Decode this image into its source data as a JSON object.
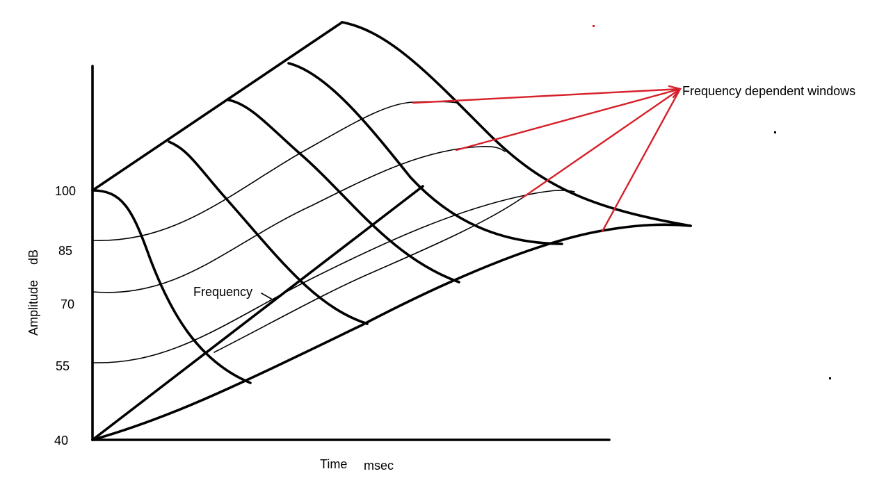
{
  "axis": {
    "y_label_text": "Amplitude",
    "y_label_unit": "dB",
    "x_label_text": "Time",
    "x_label_unit": "msec",
    "y_ticks": [
      "100",
      "85",
      "70",
      "55",
      "40"
    ]
  },
  "annotations": {
    "frequency_axis_label": "Frequency",
    "windows_label": "Frequency dependent windows"
  },
  "colors": {
    "lines": "#000000",
    "pointer": "#d6202a"
  }
}
